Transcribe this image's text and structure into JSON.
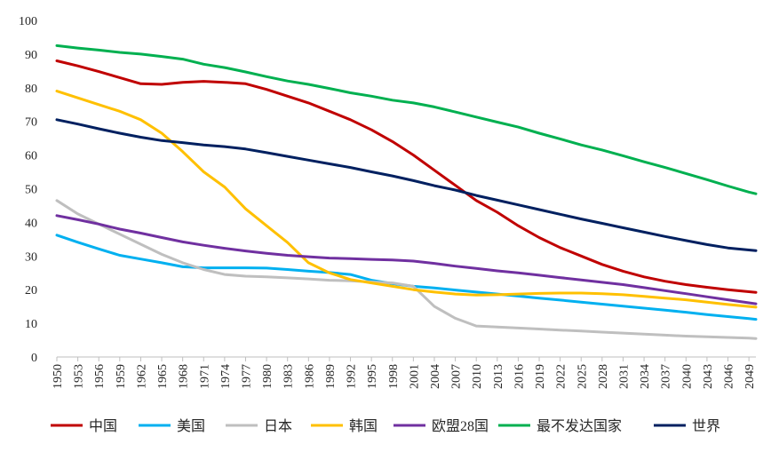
{
  "chart_data": {
    "type": "line",
    "title": "",
    "xlabel": "",
    "ylabel": "",
    "ylim": [
      0,
      100
    ],
    "yticks": [
      "0",
      "10",
      "20",
      "30",
      "40",
      "50",
      "60",
      "70",
      "80",
      "90",
      "100"
    ],
    "grid": false,
    "legend_position": "bottom",
    "x": [
      1950,
      1953,
      1956,
      1959,
      1962,
      1965,
      1968,
      1971,
      1974,
      1977,
      1980,
      1983,
      1986,
      1989,
      1992,
      1995,
      1998,
      2001,
      2004,
      2007,
      2010,
      2013,
      2016,
      2019,
      2022,
      2025,
      2028,
      2031,
      2034,
      2037,
      2040,
      2043,
      2046,
      2049,
      2050
    ],
    "xtick_labels": [
      "1950",
      "1953",
      "1956",
      "1959",
      "1962",
      "1965",
      "1968",
      "1971",
      "1974",
      "1977",
      "1980",
      "1983",
      "1986",
      "1989",
      "1992",
      "1995",
      "1998",
      "2001",
      "2004",
      "2007",
      "2010",
      "2013",
      "2016",
      "2019",
      "2022",
      "2025",
      "2028",
      "2031",
      "2034",
      "2037",
      "2040",
      "2043",
      "2046",
      "2049"
    ],
    "series": [
      {
        "name": "中国",
        "color": "#c00000",
        "values": [
          88,
          86.5,
          84.8,
          83,
          81.2,
          81,
          81.6,
          81.9,
          81.6,
          81.2,
          79.5,
          77.5,
          75.5,
          73,
          70.5,
          67.5,
          64,
          60,
          55.5,
          51,
          46.5,
          43,
          39,
          35.5,
          32.5,
          30,
          27.5,
          25.5,
          23.8,
          22.5,
          21.5,
          20.7,
          20,
          19.4,
          19.2
        ]
      },
      {
        "name": "美国",
        "color": "#00b0f0",
        "values": [
          36.2,
          34.1,
          32.1,
          30.2,
          29.1,
          28,
          26.8,
          26.5,
          26.5,
          26.5,
          26.4,
          26,
          25.5,
          25.1,
          24.5,
          22.8,
          21.8,
          21,
          20.5,
          19.9,
          19.3,
          18.7,
          18.1,
          17.5,
          16.9,
          16.3,
          15.7,
          15.1,
          14.5,
          13.9,
          13.3,
          12.6,
          12,
          11.4,
          11.2
        ]
      },
      {
        "name": "日本",
        "color": "#bfbfbf",
        "values": [
          46.5,
          42.5,
          39.5,
          36.5,
          33.5,
          30.5,
          28,
          26,
          24.5,
          24,
          23.8,
          23.5,
          23.2,
          22.8,
          22.6,
          22.3,
          22,
          21,
          15,
          11.5,
          9.2,
          8.9,
          8.6,
          8.3,
          8.0,
          7.7,
          7.4,
          7.1,
          6.8,
          6.5,
          6.2,
          6.0,
          5.8,
          5.6,
          5.5
        ]
      },
      {
        "name": "韩国",
        "color": "#ffc000",
        "values": [
          79,
          77,
          75,
          73,
          70.5,
          66.5,
          61,
          55,
          50.5,
          44,
          39,
          34,
          28,
          25,
          23,
          22,
          21,
          20,
          19.3,
          18.7,
          18.4,
          18.5,
          18.7,
          18.9,
          19,
          19,
          18.8,
          18.5,
          18,
          17.5,
          17,
          16.3,
          15.6,
          15.0,
          14.8
        ]
      },
      {
        "name": "欧盟28国",
        "color": "#7030a0",
        "values": [
          42,
          40.8,
          39.5,
          38,
          36.8,
          35.5,
          34.2,
          33.2,
          32.3,
          31.5,
          30.8,
          30.2,
          29.8,
          29.4,
          29.2,
          29,
          28.8,
          28.5,
          27.8,
          27,
          26.3,
          25.6,
          25,
          24.3,
          23.6,
          22.9,
          22.2,
          21.5,
          20.6,
          19.7,
          18.8,
          17.9,
          17,
          16.1,
          15.8
        ]
      },
      {
        "name": "最不发达国家",
        "color": "#00b050",
        "values": [
          92.5,
          91.8,
          91.2,
          90.5,
          90,
          89.3,
          88.5,
          87,
          86,
          84.7,
          83.3,
          82,
          81,
          79.8,
          78.5,
          77.5,
          76.3,
          75.5,
          74.3,
          72.8,
          71.3,
          69.8,
          68.3,
          66.5,
          64.8,
          63,
          61.5,
          59.8,
          58,
          56.3,
          54.5,
          52.7,
          50.8,
          49,
          48.5
        ]
      },
      {
        "name": "世界",
        "color": "#002060",
        "values": [
          70.5,
          69.2,
          67.8,
          66.5,
          65.3,
          64.3,
          63.7,
          63,
          62.5,
          61.8,
          60.7,
          59.6,
          58.5,
          57.4,
          56.3,
          55,
          53.8,
          52.4,
          50.9,
          49.6,
          48,
          46.6,
          45.2,
          43.8,
          42.4,
          41,
          39.7,
          38.4,
          37.1,
          35.8,
          34.6,
          33.4,
          32.4,
          31.8,
          31.6
        ]
      }
    ]
  }
}
